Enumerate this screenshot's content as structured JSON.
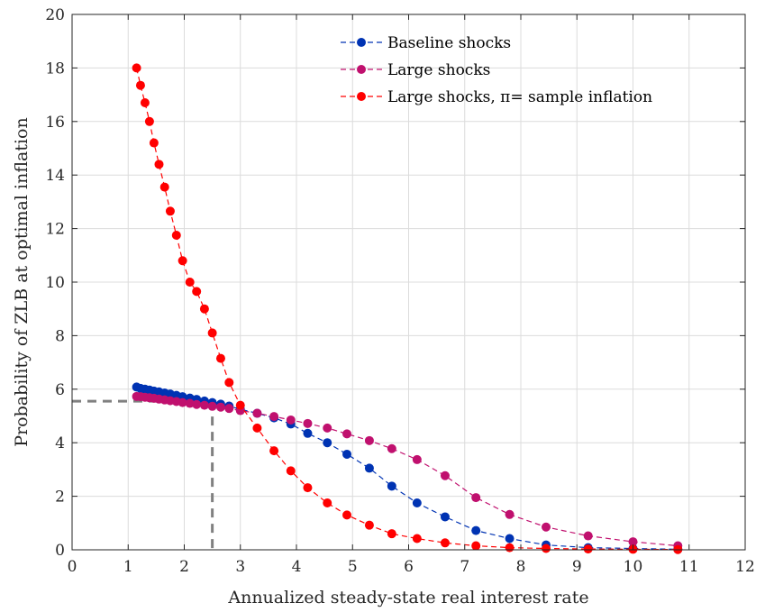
{
  "chart_data": {
    "type": "line",
    "xlabel": "Annualized steady-state real interest rate",
    "ylabel": "Probability of ZLB at optimal inflation",
    "xlim": [
      0,
      12
    ],
    "ylim": [
      0,
      20
    ],
    "xticks": [
      0,
      1,
      2,
      3,
      4,
      5,
      6,
      7,
      8,
      9,
      10,
      11,
      12
    ],
    "yticks": [
      0,
      2,
      4,
      6,
      8,
      10,
      12,
      14,
      16,
      18,
      20
    ],
    "grid": true,
    "legend_position": "top-right",
    "reference_point": {
      "x": 2.5,
      "y": 5.55,
      "style": "dashed",
      "color": "#808080"
    },
    "series": [
      {
        "name": "Baseline shocks",
        "color": "#0033b3",
        "x": [
          1.15,
          1.22,
          1.3,
          1.38,
          1.46,
          1.55,
          1.65,
          1.75,
          1.86,
          1.97,
          2.1,
          2.22,
          2.36,
          2.5,
          2.65,
          2.8,
          3.0,
          3.3,
          3.6,
          3.9,
          4.2,
          4.55,
          4.9,
          5.3,
          5.7,
          6.15,
          6.65,
          7.2,
          7.8,
          8.45,
          9.2,
          10.0,
          10.8
        ],
        "y": [
          6.08,
          6.03,
          6.0,
          5.97,
          5.93,
          5.9,
          5.86,
          5.82,
          5.77,
          5.72,
          5.67,
          5.62,
          5.56,
          5.5,
          5.44,
          5.37,
          5.25,
          5.1,
          4.93,
          4.7,
          4.35,
          4.0,
          3.57,
          3.05,
          2.38,
          1.75,
          1.23,
          0.72,
          0.42,
          0.18,
          0.08,
          0.05,
          0.02
        ]
      },
      {
        "name": "Large shocks",
        "color": "#c0106e",
        "x": [
          1.15,
          1.22,
          1.3,
          1.38,
          1.46,
          1.55,
          1.65,
          1.75,
          1.86,
          1.97,
          2.1,
          2.22,
          2.36,
          2.5,
          2.65,
          2.8,
          3.0,
          3.3,
          3.6,
          3.9,
          4.2,
          4.55,
          4.9,
          5.3,
          5.7,
          6.15,
          6.65,
          7.2,
          7.8,
          8.45,
          9.2,
          10.0,
          10.8
        ],
        "y": [
          5.73,
          5.72,
          5.7,
          5.68,
          5.66,
          5.63,
          5.6,
          5.57,
          5.54,
          5.5,
          5.47,
          5.43,
          5.4,
          5.36,
          5.33,
          5.28,
          5.2,
          5.1,
          4.98,
          4.85,
          4.72,
          4.55,
          4.33,
          4.08,
          3.78,
          3.37,
          2.77,
          1.95,
          1.32,
          0.85,
          0.52,
          0.3,
          0.15
        ]
      },
      {
        "name": "Large shocks, π= sample inflation",
        "color": "#ff0000",
        "x": [
          1.15,
          1.22,
          1.3,
          1.38,
          1.46,
          1.55,
          1.65,
          1.75,
          1.86,
          1.97,
          2.1,
          2.22,
          2.36,
          2.5,
          2.65,
          2.8,
          3.0,
          3.3,
          3.6,
          3.9,
          4.2,
          4.55,
          4.9,
          5.3,
          5.7,
          6.15,
          6.65,
          7.2,
          7.8,
          8.45,
          9.2,
          10.0,
          10.8
        ],
        "y": [
          18.0,
          17.35,
          16.7,
          16.0,
          15.2,
          14.4,
          13.55,
          12.65,
          11.75,
          10.8,
          10.0,
          9.65,
          9.0,
          8.1,
          7.15,
          6.25,
          5.4,
          4.55,
          3.7,
          2.95,
          2.32,
          1.75,
          1.3,
          0.92,
          0.6,
          0.42,
          0.26,
          0.15,
          0.08,
          0.05,
          0.03,
          0.02,
          0.01
        ]
      }
    ]
  }
}
